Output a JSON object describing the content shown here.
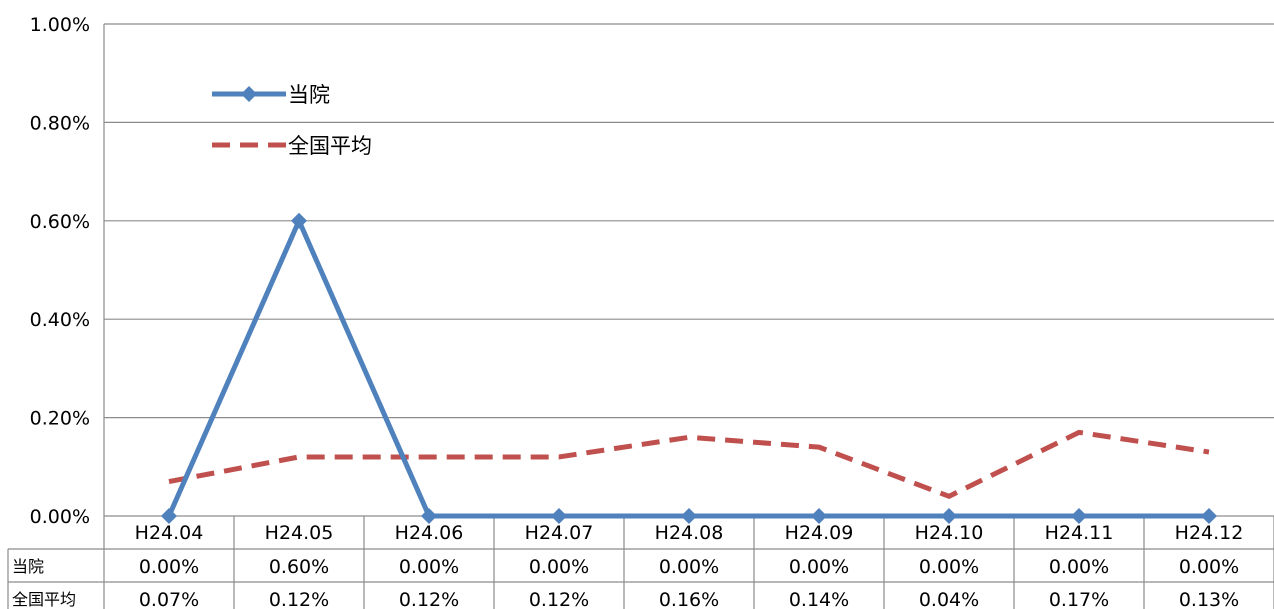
{
  "chart_data": {
    "type": "line",
    "categories": [
      "H24.04",
      "H24.05",
      "H24.06",
      "H24.07",
      "H24.08",
      "H24.09",
      "H24.10",
      "H24.11",
      "H24.12"
    ],
    "series": [
      {
        "name": "当院",
        "values": [
          0.0,
          0.6,
          0.0,
          0.0,
          0.0,
          0.0,
          0.0,
          0.0,
          0.0
        ],
        "labels": [
          "0.00%",
          "0.60%",
          "0.00%",
          "0.00%",
          "0.00%",
          "0.00%",
          "0.00%",
          "0.00%",
          "0.00%"
        ],
        "color": "#4F81BD",
        "style": "solid-diamond"
      },
      {
        "name": "全国平均",
        "values": [
          0.07,
          0.12,
          0.12,
          0.12,
          0.16,
          0.14,
          0.04,
          0.17,
          0.13
        ],
        "labels": [
          "0.07%",
          "0.12%",
          "0.12%",
          "0.12%",
          "0.16%",
          "0.14%",
          "0.04%",
          "0.17%",
          "0.13%"
        ],
        "color": "#C0504D",
        "style": "dashed"
      }
    ],
    "ylim": [
      0,
      1.0
    ],
    "yticks": [
      "0.00%",
      "0.20%",
      "0.40%",
      "0.60%",
      "0.80%",
      "1.00%"
    ],
    "grid": true,
    "legend": "top-left",
    "data_table": true
  }
}
